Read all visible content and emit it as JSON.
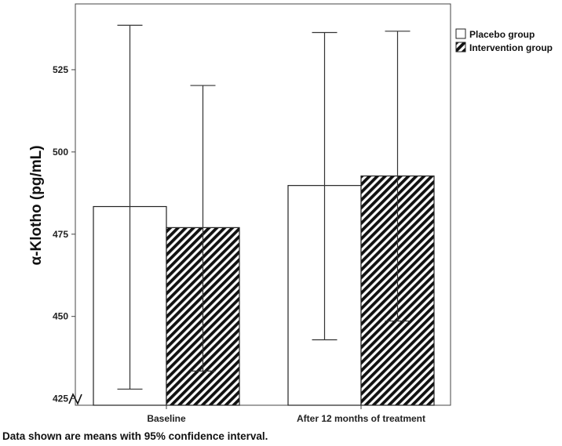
{
  "chart_data": {
    "type": "bar",
    "categories": [
      "Baseline",
      "After 12 months of treatment"
    ],
    "series": [
      {
        "name": "Placebo group",
        "values": [
          483.4,
          489.8
        ],
        "ci_lower": [
          427.9,
          442.9
        ],
        "ci_upper": [
          538.5,
          536.3
        ],
        "fill": "#ffffff",
        "pattern": "none"
      },
      {
        "name": "Intervention group",
        "values": [
          477.0,
          492.7
        ],
        "ci_lower": [
          433.4,
          448.6
        ],
        "ci_upper": [
          520.2,
          536.7
        ],
        "fill": "#111111",
        "pattern": "diagonal-stripes"
      }
    ],
    "ylabel": "α-Klotho (pg/mL)",
    "yticks": [
      425,
      450,
      475,
      500,
      525
    ],
    "ylim": [
      423,
      545
    ],
    "axis_break": true,
    "legend_position": "top-right-outside",
    "grid": false
  },
  "caption": "Data shown are means with 95% confidence interval."
}
